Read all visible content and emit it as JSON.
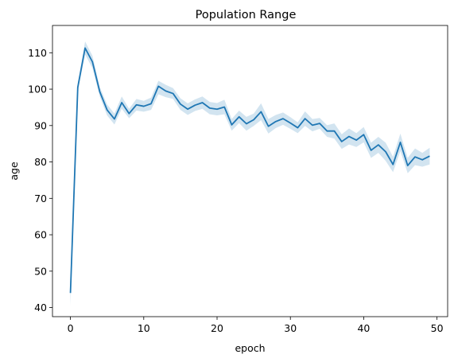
{
  "chart_data": {
    "type": "line",
    "title": "Population Range",
    "xlabel": "epoch",
    "ylabel": "age",
    "xlim": [
      -2.45,
      51.45
    ],
    "ylim": [
      37.5,
      117.5
    ],
    "xticks": [
      0,
      10,
      20,
      30,
      40,
      50
    ],
    "yticks": [
      40,
      50,
      60,
      70,
      80,
      90,
      100,
      110
    ],
    "grid": false,
    "legend": "none",
    "colors": {
      "line": "#1f77b4",
      "band": "#1f77b4"
    },
    "series": [
      {
        "x": [
          0,
          1,
          2,
          3,
          4,
          5,
          6,
          7,
          8,
          9,
          10,
          11,
          12,
          13,
          14,
          15,
          16,
          17,
          18,
          19,
          20,
          21,
          22,
          23,
          24,
          25,
          26,
          27,
          28,
          29,
          30,
          31,
          32,
          33,
          34,
          35,
          36,
          37,
          38,
          39,
          40,
          41,
          42,
          43,
          44,
          45,
          46,
          47,
          48,
          49
        ],
        "y": [
          44.0,
          100.5,
          111.3,
          107.5,
          99.3,
          94.3,
          91.8,
          96.3,
          93.3,
          95.7,
          95.3,
          96.0,
          100.8,
          99.5,
          98.8,
          95.9,
          94.5,
          95.6,
          96.3,
          94.8,
          94.5,
          95.1,
          90.2,
          92.4,
          90.5,
          91.6,
          93.8,
          89.8,
          91.1,
          91.9,
          90.7,
          89.4,
          91.9,
          90.1,
          90.6,
          88.5,
          88.5,
          85.6,
          87.0,
          86.0,
          87.5,
          83.2,
          84.7,
          82.8,
          79.3,
          85.4,
          79.0,
          81.4,
          80.6,
          81.6
        ],
        "y_lower": [
          40.5,
          99.3,
          109.5,
          105.8,
          98.0,
          92.8,
          90.3,
          94.6,
          92.0,
          94.1,
          93.8,
          94.3,
          98.6,
          97.8,
          97.3,
          94.3,
          92.9,
          94.0,
          94.6,
          93.1,
          92.8,
          93.1,
          88.6,
          90.7,
          88.6,
          89.9,
          91.5,
          87.8,
          89.3,
          90.2,
          89.1,
          87.9,
          89.9,
          88.4,
          89.1,
          86.9,
          86.4,
          83.6,
          84.8,
          84.1,
          85.4,
          81.1,
          82.5,
          80.3,
          77.2,
          83.0,
          76.9,
          79.1,
          78.7,
          79.3
        ],
        "y_upper": [
          47.5,
          101.7,
          113.1,
          109.2,
          100.6,
          95.8,
          93.3,
          98.0,
          94.6,
          97.3,
          96.8,
          97.7,
          102.3,
          101.2,
          100.3,
          97.5,
          96.1,
          97.2,
          98.0,
          96.5,
          96.2,
          97.1,
          91.8,
          94.1,
          92.4,
          93.3,
          96.1,
          91.8,
          92.9,
          93.6,
          92.3,
          90.9,
          93.9,
          91.8,
          92.1,
          90.1,
          90.6,
          87.6,
          89.2,
          87.9,
          89.6,
          85.3,
          86.9,
          85.3,
          81.4,
          87.8,
          81.1,
          83.7,
          82.5,
          83.9
        ]
      }
    ]
  }
}
